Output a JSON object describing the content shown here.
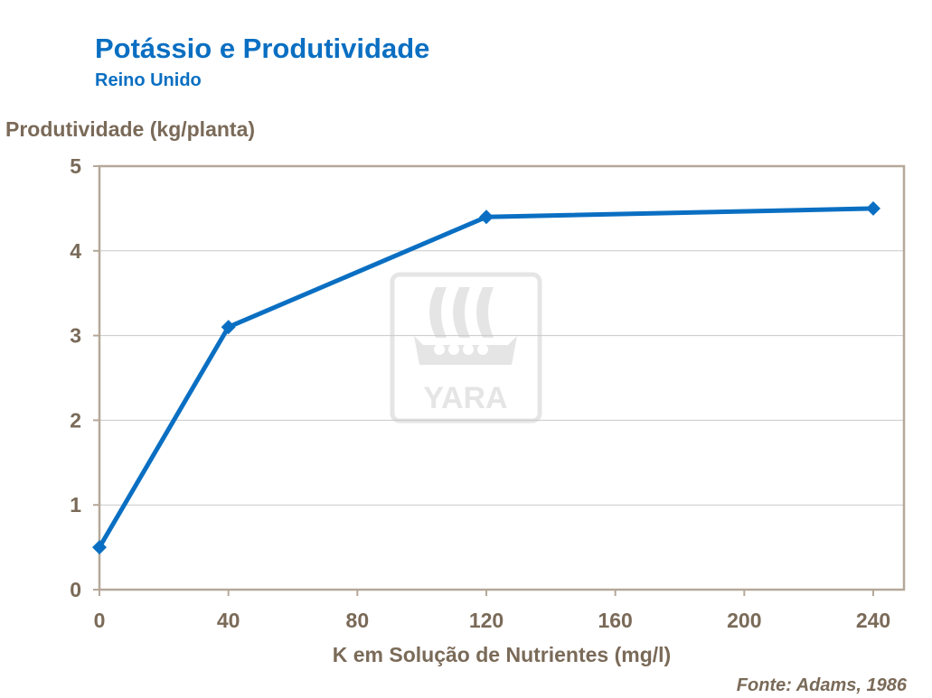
{
  "header": {
    "title": "Potássio e Produtividade",
    "subtitle": "Reino Unido"
  },
  "watermark": {
    "text": "YARA"
  },
  "source": "Fonte: Adams, 1986",
  "chart_data": {
    "type": "line",
    "title": "Potássio e Produtividade",
    "subtitle": "Reino Unido",
    "xlabel": "K em Solução de Nutrientes (mg/l)",
    "ylabel": "Produtividade (kg/planta)",
    "xlim": [
      0,
      240
    ],
    "ylim": [
      0,
      5
    ],
    "xticks": [
      0,
      40,
      80,
      120,
      160,
      200,
      240
    ],
    "yticks": [
      0,
      1,
      2,
      3,
      4,
      5
    ],
    "grid": "horizontal",
    "line_color": "#0a6fc2",
    "frame_color": "#b5a899",
    "grid_color": "#c8c8c8",
    "x": [
      0,
      40,
      120,
      240
    ],
    "y": [
      0.5,
      3.1,
      4.4,
      4.5
    ],
    "marker": "diamond"
  }
}
